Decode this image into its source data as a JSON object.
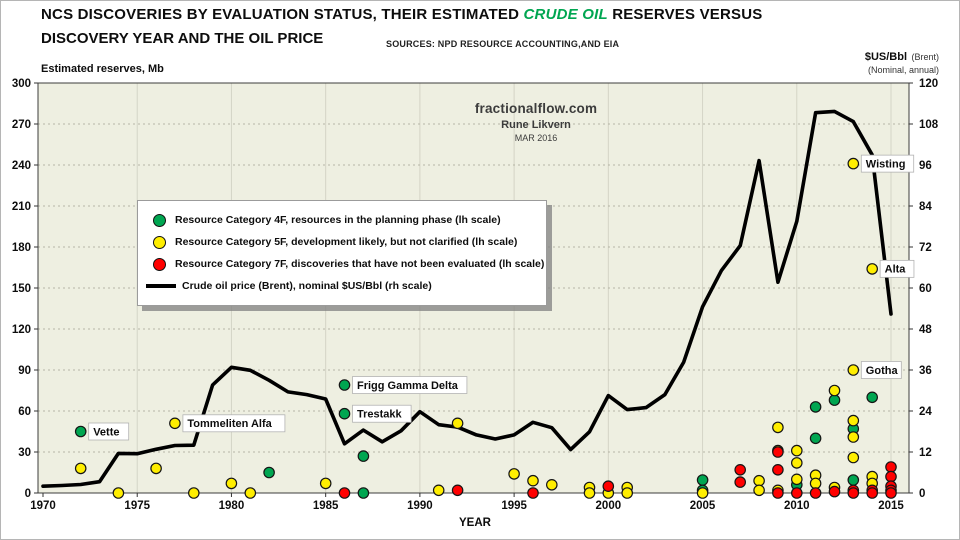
{
  "page": {
    "title_part1": "NCS DISCOVERIES BY EVALUATION STATUS, THEIR ESTIMATED ",
    "title_highlight": "CRUDE OIL",
    "title_part2": " RESERVES VERSUS",
    "title_line2": "DISCOVERY YEAR AND THE OIL PRICE",
    "sources": "SOURCES: NPD RESOURCE ACCOUNTING,AND EIA"
  },
  "watermark": {
    "site": "fractionalflow.com",
    "author": "Rune Likvern",
    "date": "MAR 2016"
  },
  "axes": {
    "left_label": "Estimated reserves, Mb",
    "right_label": "$US/Bbl",
    "right_label_note": "(Brent)",
    "right_label_sub": "(Nominal, annual)",
    "x_label": "YEAR"
  },
  "colors": {
    "green": "#00A651",
    "yellow": "#FFEE00",
    "red": "#FF0000",
    "line": "#000000",
    "plot_bg": "#EEEFE1",
    "title_highlight": "#00A651"
  },
  "legend": {
    "items": [
      {
        "key": "cat4f",
        "marker": "circle",
        "color_key": "green",
        "label": "Resource Category 4F, resources in the planning phase (lh scale)"
      },
      {
        "key": "cat5f",
        "marker": "circle",
        "color_key": "yellow",
        "label": "Resource Category 5F, development likely, but not clarified (lh scale)"
      },
      {
        "key": "cat7f",
        "marker": "circle",
        "color_key": "red",
        "label": "Resource Category 7F, discoveries that have not been evaluated (lh scale)"
      },
      {
        "key": "price",
        "marker": "line",
        "color_key": "line",
        "label": "Crude oil price (Brent), nominal $US/Bbl (rh scale)"
      }
    ]
  },
  "chart_data": {
    "type": "scatter+line",
    "title": "NCS DISCOVERIES BY EVALUATION STATUS, THEIR ESTIMATED CRUDE OIL RESERVES VERSUS DISCOVERY YEAR AND THE OIL PRICE",
    "xlabel": "YEAR",
    "x_ticks": [
      1970,
      1975,
      1980,
      1985,
      1990,
      1995,
      2000,
      2005,
      2010,
      2015
    ],
    "y_left": {
      "label": "Estimated reserves, Mb",
      "min": 0,
      "max": 300,
      "step": 30
    },
    "y_right": {
      "label": "$US/Bbl (Brent), nominal annual",
      "min": 0,
      "max": 120,
      "step": 12
    },
    "grid": {
      "horizontal": "dotted",
      "vertical": "solid"
    },
    "legend_position": "upper-left-inside",
    "series": [
      {
        "name": "Resource Category 4F, resources in the planning phase",
        "type": "scatter",
        "axis": "left",
        "color_key": "green",
        "points": [
          [
            1972,
            45
          ],
          [
            1982,
            15
          ],
          [
            1986,
            79
          ],
          [
            1986,
            58
          ],
          [
            1987,
            27
          ],
          [
            1987,
            0
          ],
          [
            2005,
            9.5
          ],
          [
            2005,
            2
          ],
          [
            2010,
            6
          ],
          [
            2011,
            63
          ],
          [
            2011,
            40
          ],
          [
            2012,
            68
          ],
          [
            2013,
            47
          ],
          [
            2013,
            9.5
          ],
          [
            2014,
            70
          ]
        ]
      },
      {
        "name": "Resource Category 5F, development likely, but not clarified",
        "type": "scatter",
        "axis": "left",
        "color_key": "yellow",
        "points": [
          [
            1972,
            18
          ],
          [
            1974,
            0
          ],
          [
            1976,
            18
          ],
          [
            1977,
            51
          ],
          [
            1978,
            0
          ],
          [
            1980,
            7
          ],
          [
            1981,
            0
          ],
          [
            1985,
            7
          ],
          [
            1991,
            2
          ],
          [
            1992,
            51
          ],
          [
            1995,
            14
          ],
          [
            1996,
            9
          ],
          [
            1997,
            6
          ],
          [
            1999,
            4
          ],
          [
            1999,
            0
          ],
          [
            2000,
            0
          ],
          [
            2001,
            4
          ],
          [
            2001,
            0
          ],
          [
            2005,
            0
          ],
          [
            2008,
            9
          ],
          [
            2008,
            2
          ],
          [
            2009,
            48
          ],
          [
            2009,
            31
          ],
          [
            2009,
            2
          ],
          [
            2010,
            31
          ],
          [
            2010,
            22
          ],
          [
            2010,
            10
          ],
          [
            2011,
            13
          ],
          [
            2011,
            7
          ],
          [
            2012,
            75
          ],
          [
            2012,
            4
          ],
          [
            2013,
            241
          ],
          [
            2013,
            90
          ],
          [
            2013,
            53
          ],
          [
            2013,
            41
          ],
          [
            2013,
            26
          ],
          [
            2014,
            164
          ],
          [
            2014,
            12
          ],
          [
            2014,
            7
          ]
        ]
      },
      {
        "name": "Resource Category 7F, discoveries that have not been evaluated",
        "type": "scatter",
        "axis": "left",
        "color_key": "red",
        "points": [
          [
            1986,
            0
          ],
          [
            1992,
            2
          ],
          [
            1996,
            0
          ],
          [
            2000,
            5
          ],
          [
            2007,
            17
          ],
          [
            2007,
            8
          ],
          [
            2009,
            30
          ],
          [
            2009,
            17
          ],
          [
            2009,
            0
          ],
          [
            2010,
            0
          ],
          [
            2011,
            0
          ],
          [
            2012,
            1
          ],
          [
            2013,
            2
          ],
          [
            2013,
            0
          ],
          [
            2014,
            2
          ],
          [
            2014,
            0
          ],
          [
            2015,
            19
          ],
          [
            2015,
            12
          ],
          [
            2015,
            5
          ],
          [
            2015,
            2
          ],
          [
            2015,
            0
          ]
        ]
      },
      {
        "name": "Crude oil price (Brent), nominal $US/Bbl",
        "type": "line",
        "axis": "right",
        "color_key": "line",
        "points": [
          [
            1970,
            2.0
          ],
          [
            1971,
            2.2
          ],
          [
            1972,
            2.5
          ],
          [
            1973,
            3.3
          ],
          [
            1974,
            11.6
          ],
          [
            1975,
            11.5
          ],
          [
            1976,
            12.8
          ],
          [
            1977,
            13.9
          ],
          [
            1978,
            14.0
          ],
          [
            1979,
            31.6
          ],
          [
            1980,
            36.8
          ],
          [
            1981,
            35.9
          ],
          [
            1982,
            33.0
          ],
          [
            1983,
            29.6
          ],
          [
            1984,
            28.8
          ],
          [
            1985,
            27.5
          ],
          [
            1986,
            14.4
          ],
          [
            1987,
            18.4
          ],
          [
            1988,
            15.0
          ],
          [
            1989,
            18.2
          ],
          [
            1990,
            23.8
          ],
          [
            1991,
            20.0
          ],
          [
            1992,
            19.3
          ],
          [
            1993,
            17.0
          ],
          [
            1994,
            15.8
          ],
          [
            1995,
            17.0
          ],
          [
            1996,
            20.7
          ],
          [
            1997,
            19.1
          ],
          [
            1998,
            12.7
          ],
          [
            1999,
            17.9
          ],
          [
            2000,
            28.5
          ],
          [
            2001,
            24.4
          ],
          [
            2002,
            25.0
          ],
          [
            2003,
            28.8
          ],
          [
            2004,
            38.3
          ],
          [
            2005,
            54.5
          ],
          [
            2006,
            65.1
          ],
          [
            2007,
            72.4
          ],
          [
            2008,
            97.3
          ],
          [
            2009,
            61.7
          ],
          [
            2010,
            79.5
          ],
          [
            2011,
            111.3
          ],
          [
            2012,
            111.7
          ],
          [
            2013,
            108.7
          ],
          [
            2014,
            99.0
          ],
          [
            2015,
            52.4
          ]
        ]
      }
    ],
    "annotations": [
      {
        "label": "Vette",
        "year": 1972,
        "value": 45
      },
      {
        "label": "Tommeliten Alfa",
        "year": 1977,
        "value": 51
      },
      {
        "label": "Frigg Gamma Delta",
        "year": 1986,
        "value": 79
      },
      {
        "label": "Trestakk",
        "year": 1986,
        "value": 58
      },
      {
        "label": "Wisting",
        "year": 2013,
        "value": 241
      },
      {
        "label": "Alta",
        "year": 2014,
        "value": 164
      },
      {
        "label": "Gotha",
        "year": 2013,
        "value": 90
      }
    ]
  }
}
